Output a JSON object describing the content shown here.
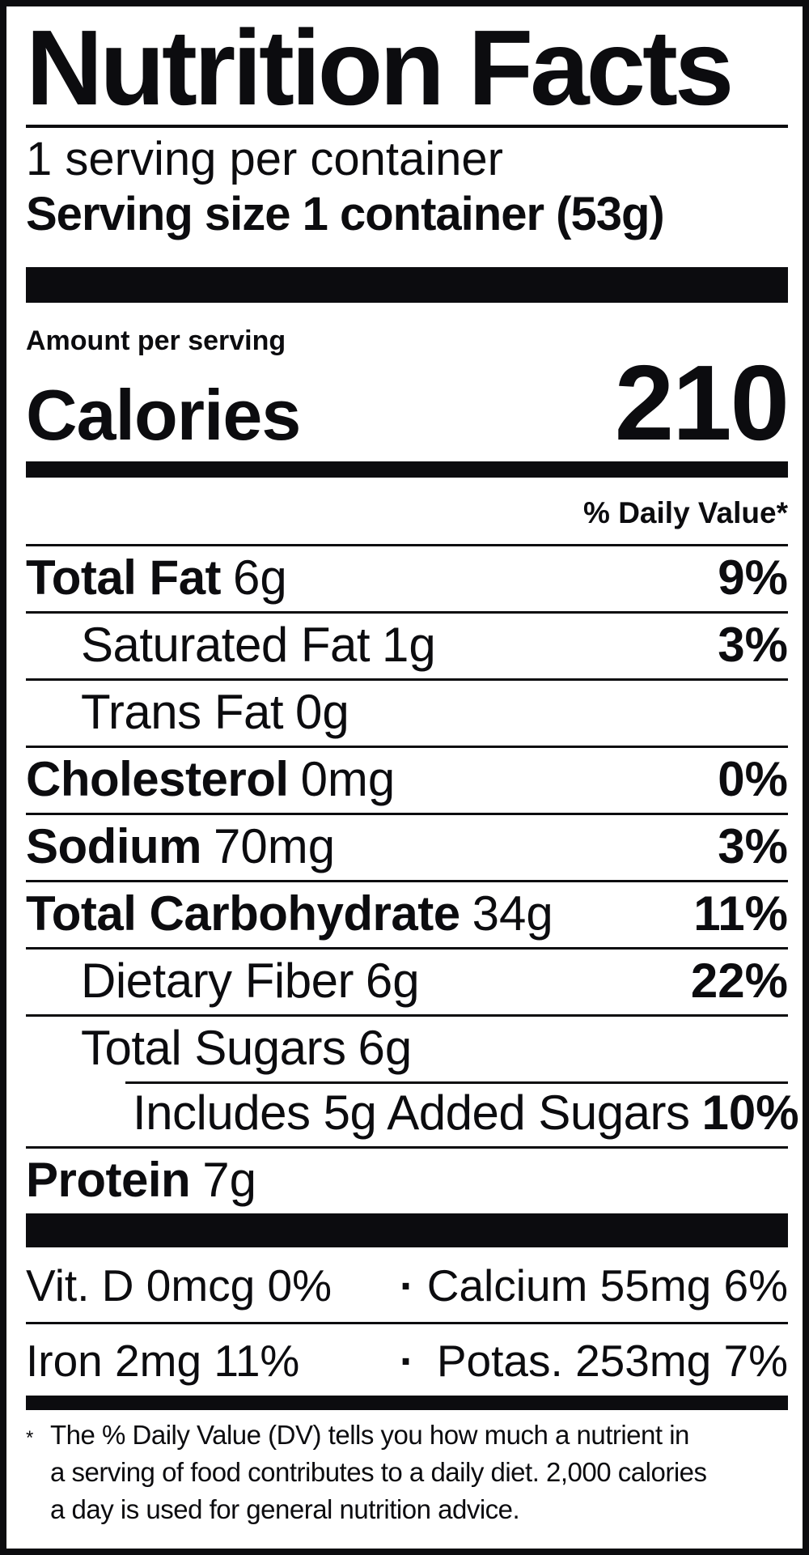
{
  "label": {
    "title": "Nutrition Facts",
    "servings_per_container": "1 serving per container",
    "serving_size": "Serving size 1 container (53g)",
    "amount_per_serving_label": "Amount per serving",
    "calories_label": "Calories",
    "calories_value": "210",
    "daily_value_header": "% Daily Value*",
    "nutrient_rows": [
      {
        "name": "Total Fat",
        "amount": "6g",
        "daily_value": "9%"
      },
      {
        "name": "Saturated Fat",
        "amount": "1g",
        "daily_value": "3%"
      },
      {
        "name": "Trans Fat",
        "amount": "0g",
        "daily_value": ""
      },
      {
        "name": "Cholesterol",
        "amount": "0mg",
        "daily_value": "0%"
      },
      {
        "name": "Sodium",
        "amount": "70mg",
        "daily_value": "3%"
      },
      {
        "name": "Total Carbohydrate",
        "amount": "34g",
        "daily_value": "11%"
      },
      {
        "name": "Dietary Fiber",
        "amount": "6g",
        "daily_value": "22%"
      },
      {
        "name": "Total Sugars",
        "amount": "6g",
        "daily_value": ""
      },
      {
        "name": "Includes 5g Added Sugars",
        "amount": "",
        "daily_value": "10%"
      },
      {
        "name": "Protein",
        "amount": "7g",
        "daily_value": ""
      }
    ],
    "micronutrient_rows": [
      {
        "left": "Vit. D 0mcg 0%",
        "separator": "·",
        "right": "Calcium 55mg 6%"
      },
      {
        "left": "Iron 2mg 11%",
        "separator": "·",
        "right": "Potas. 253mg 7%"
      }
    ],
    "footnote": {
      "marker": "*",
      "lines": [
        "The % Daily Value (DV) tells you how much a nutrient in",
        "a serving of food contributes to a daily diet. 2,000 calories",
        "a day is used for general nutrition advice."
      ]
    }
  },
  "colors": {
    "ink": "#0c0c0f",
    "paper": "#ffffff"
  }
}
